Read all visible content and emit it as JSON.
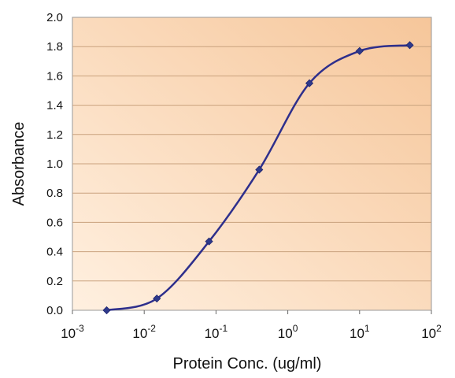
{
  "chart_data": {
    "type": "line",
    "title": "",
    "xlabel": "Protein Conc. (ug/ml)",
    "ylabel": "Absorbance",
    "x_scale": "log",
    "xlim": [
      0.001,
      100
    ],
    "ylim": [
      0,
      2.0
    ],
    "x_ticks": [
      {
        "value": 0.001,
        "base": "10",
        "exp": "-3"
      },
      {
        "value": 0.01,
        "base": "10",
        "exp": "-2"
      },
      {
        "value": 0.1,
        "base": "10",
        "exp": "-1"
      },
      {
        "value": 1,
        "base": "10",
        "exp": "0"
      },
      {
        "value": 10,
        "base": "10",
        "exp": "1"
      },
      {
        "value": 100,
        "base": "10",
        "exp": "2"
      }
    ],
    "y_ticks": [
      "0.0",
      "0.2",
      "0.4",
      "0.6",
      "0.8",
      "1.0",
      "1.2",
      "1.4",
      "1.6",
      "1.8",
      "2.0"
    ],
    "grid": "horizontal",
    "series": [
      {
        "x": [
          0.003,
          0.015,
          0.08,
          0.4,
          2.0,
          10,
          50
        ],
        "y": [
          0.0,
          0.08,
          0.47,
          0.96,
          1.55,
          1.77,
          1.81
        ]
      }
    ],
    "colors": {
      "line": "#2e2f8c",
      "marker": "#2e3a8c",
      "plot_bg_light": "#fff0e0",
      "plot_bg_dark": "#f6c69a",
      "grid": "#c9a27e"
    }
  }
}
